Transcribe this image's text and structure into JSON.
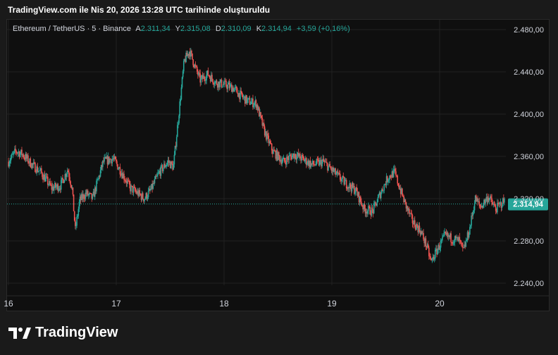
{
  "caption": "TradingView.com ile Nis 20, 2026 13:28 UTC tarihinde oluşturuldu",
  "brand": {
    "name": "TradingView",
    "logo_icon": "tradingview-logo-icon"
  },
  "legend": {
    "symbol": "Ethereum / TetherUS · 5 · Binance",
    "open_label": "A",
    "open": "2.311,34",
    "high_label": "Y",
    "high": "2.315,08",
    "low_label": "D",
    "low": "2.310,09",
    "close_label": "K",
    "close": "2.314,94",
    "change": "+3,59 (+0,16%)"
  },
  "colors": {
    "up": "#26a69a",
    "down": "#ef5350",
    "grid": "#222222",
    "price_line": "#26a69a",
    "axis_text": "#d1d4dc"
  },
  "chart_data": {
    "type": "candlestick",
    "interval": "5",
    "x_ticks": [
      "16",
      "17",
      "18",
      "19",
      "20"
    ],
    "y_ticks": [
      "2.240,00",
      "2.280,00",
      "2.320,00",
      "2.360,00",
      "2.400,00",
      "2.440,00",
      "2.480,00"
    ],
    "ylim": [
      2228,
      2490
    ],
    "xlim_days": [
      16.0,
      20.98
    ],
    "last_price": 2314.94,
    "last_price_label": "2.314,94",
    "grid": true,
    "path": [
      [
        16.0,
        2355
      ],
      [
        16.07,
        2365
      ],
      [
        16.13,
        2362
      ],
      [
        16.22,
        2352
      ],
      [
        16.3,
        2345
      ],
      [
        16.4,
        2330
      ],
      [
        16.48,
        2332
      ],
      [
        16.55,
        2348
      ],
      [
        16.59,
        2330
      ],
      [
        16.62,
        2290
      ],
      [
        16.66,
        2318
      ],
      [
        16.72,
        2325
      ],
      [
        16.78,
        2320
      ],
      [
        16.88,
        2355
      ],
      [
        16.97,
        2358
      ],
      [
        17.05,
        2345
      ],
      [
        17.13,
        2330
      ],
      [
        17.2,
        2325
      ],
      [
        17.26,
        2320
      ],
      [
        17.32,
        2328
      ],
      [
        17.4,
        2345
      ],
      [
        17.48,
        2355
      ],
      [
        17.53,
        2350
      ],
      [
        17.58,
        2400
      ],
      [
        17.63,
        2450
      ],
      [
        17.68,
        2460
      ],
      [
        17.73,
        2445
      ],
      [
        17.78,
        2432
      ],
      [
        17.85,
        2438
      ],
      [
        17.92,
        2430
      ],
      [
        18.0,
        2428
      ],
      [
        18.08,
        2425
      ],
      [
        18.15,
        2418
      ],
      [
        18.22,
        2412
      ],
      [
        18.3,
        2410
      ],
      [
        18.37,
        2385
      ],
      [
        18.45,
        2365
      ],
      [
        18.55,
        2355
      ],
      [
        18.65,
        2362
      ],
      [
        18.72,
        2358
      ],
      [
        18.82,
        2352
      ],
      [
        18.92,
        2355
      ],
      [
        19.02,
        2345
      ],
      [
        19.12,
        2335
      ],
      [
        19.22,
        2328
      ],
      [
        19.3,
        2310
      ],
      [
        19.38,
        2308
      ],
      [
        19.45,
        2325
      ],
      [
        19.52,
        2340
      ],
      [
        19.58,
        2345
      ],
      [
        19.63,
        2330
      ],
      [
        19.68,
        2315
      ],
      [
        19.75,
        2298
      ],
      [
        19.82,
        2290
      ],
      [
        19.88,
        2275
      ],
      [
        19.92,
        2260
      ],
      [
        19.97,
        2270
      ],
      [
        20.05,
        2285
      ],
      [
        20.12,
        2282
      ],
      [
        20.18,
        2280
      ],
      [
        20.22,
        2270
      ],
      [
        20.28,
        2292
      ],
      [
        20.33,
        2320
      ],
      [
        20.38,
        2312
      ],
      [
        20.45,
        2322
      ],
      [
        20.52,
        2310
      ],
      [
        20.6,
        2318
      ],
      [
        20.66,
        2315
      ]
    ]
  }
}
